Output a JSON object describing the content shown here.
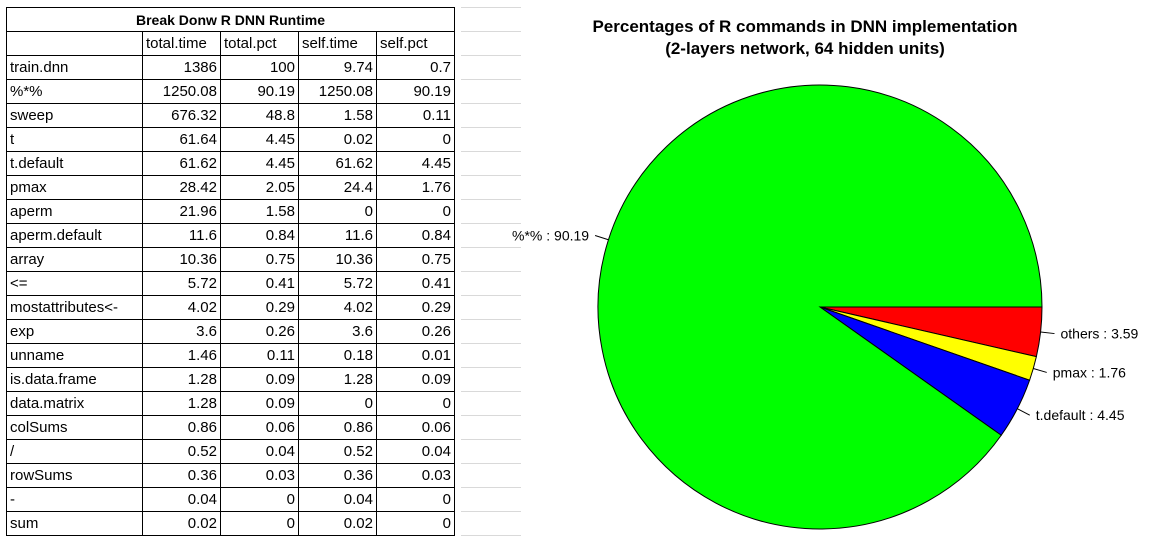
{
  "table": {
    "title": "Break Donw R DNN Runtime",
    "headers": [
      "",
      "total.time",
      "total.pct",
      "self.time",
      "self.pct"
    ],
    "rows": [
      [
        "train.dnn",
        "1386",
        "100",
        "9.74",
        "0.7"
      ],
      [
        "%*%",
        "1250.08",
        "90.19",
        "1250.08",
        "90.19"
      ],
      [
        "sweep",
        "676.32",
        "48.8",
        "1.58",
        "0.11"
      ],
      [
        "t",
        "61.64",
        "4.45",
        "0.02",
        "0"
      ],
      [
        "t.default",
        "61.62",
        "4.45",
        "61.62",
        "4.45"
      ],
      [
        "pmax",
        "28.42",
        "2.05",
        "24.4",
        "1.76"
      ],
      [
        "aperm",
        "21.96",
        "1.58",
        "0",
        "0"
      ],
      [
        "aperm.default",
        "11.6",
        "0.84",
        "11.6",
        "0.84"
      ],
      [
        "array",
        "10.36",
        "0.75",
        "10.36",
        "0.75"
      ],
      [
        "<=",
        "5.72",
        "0.41",
        "5.72",
        "0.41"
      ],
      [
        "mostattributes<-",
        "4.02",
        "0.29",
        "4.02",
        "0.29"
      ],
      [
        "exp",
        "3.6",
        "0.26",
        "3.6",
        "0.26"
      ],
      [
        "unname",
        "1.46",
        "0.11",
        "0.18",
        "0.01"
      ],
      [
        "is.data.frame",
        "1.28",
        "0.09",
        "1.28",
        "0.09"
      ],
      [
        "data.matrix",
        "1.28",
        "0.09",
        "0",
        "0"
      ],
      [
        "colSums",
        "0.86",
        "0.06",
        "0.86",
        "0.06"
      ],
      [
        "/",
        "0.52",
        "0.04",
        "0.52",
        "0.04"
      ],
      [
        "rowSums",
        "0.36",
        "0.03",
        "0.36",
        "0.03"
      ],
      [
        "-",
        "0.04",
        "0",
        "0.04",
        "0"
      ],
      [
        "sum",
        "0.02",
        "0",
        "0.02",
        "0"
      ]
    ]
  },
  "chart_data": {
    "type": "pie",
    "title_lines": [
      "Percentages of R commands in DNN implementation",
      "(2-layers network, 64 hidden units)"
    ],
    "slices": [
      {
        "label": "others",
        "value": 3.59,
        "display": "others : 3.59",
        "color": "#ff0000"
      },
      {
        "label": "pmax",
        "value": 1.76,
        "display": "pmax : 1.76",
        "color": "#ffff00"
      },
      {
        "label": "t.default",
        "value": 4.45,
        "display": "t.default : 4.45",
        "color": "#0000ff"
      },
      {
        "label": "%*%",
        "value": 90.19,
        "display": "%*% : 90.19",
        "color": "#00ff00"
      }
    ],
    "start_angle_deg": 0,
    "direction": "clockwise",
    "legend": "none"
  }
}
